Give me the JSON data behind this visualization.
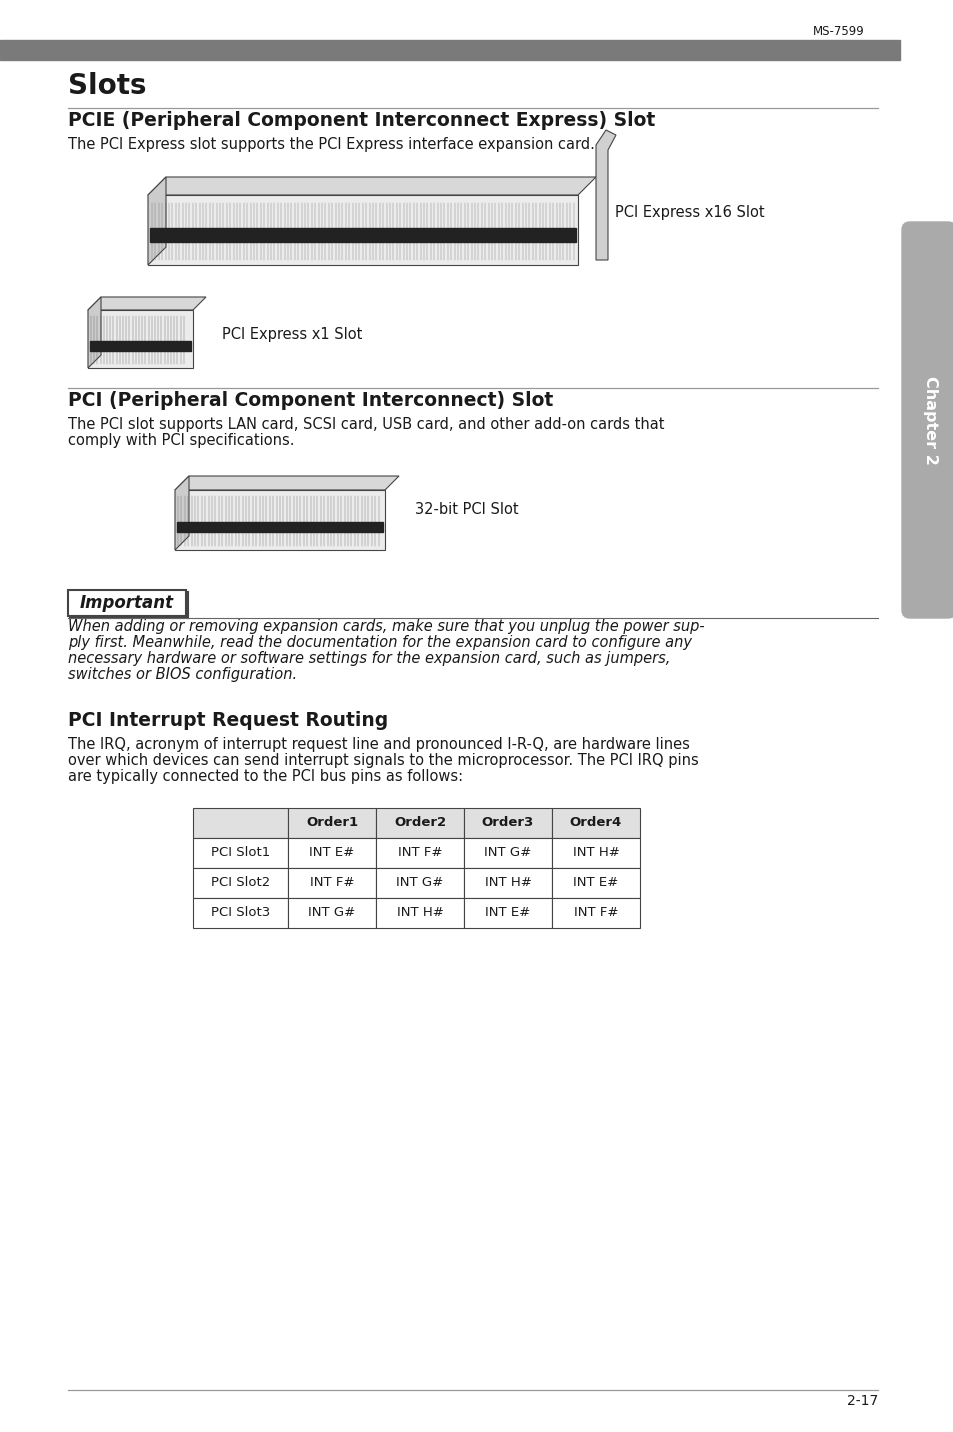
{
  "page_number": "2-17",
  "header_text": "MS-7599",
  "header_bar_color": "#7a7a7a",
  "bg_color": "#ffffff",
  "side_tab_color": "#aaaaaa",
  "side_tab_text": "Chapter 2",
  "section1_title": "Slots",
  "section2_title": "PCIE (Peripheral Component Interconnect Express) Slot",
  "section2_body": "The PCI Express slot supports the PCI Express interface expansion card.",
  "pcie_x16_label": "PCI Express x16 Slot",
  "pcie_x1_label": "PCI Express x1 Slot",
  "section3_title": "PCI (Peripheral Component Interconnect) Slot",
  "section3_body1": "The PCI slot supports LAN card, SCSI card, USB card, and other add-on cards that",
  "section3_body2": "comply with PCI specifications.",
  "pci_slot_label": "32-bit PCI Slot",
  "important_title": "Important",
  "important_body1": "When adding or removing expansion cards, make sure that you unplug the power sup-",
  "important_body2": "ply first. Meanwhile, read the documentation for the expansion card to configure any",
  "important_body3": "necessary hardware or software settings for the expansion card, such as jumpers,",
  "important_body4": "switches or BIOS configuration.",
  "section4_title": "PCI Interrupt Request Routing",
  "section4_body1": "The IRQ, acronym of interrupt request line and pronounced I-R-Q, are hardware lines",
  "section4_body2": "over which devices can send interrupt signals to the microprocessor. The PCI IRQ pins",
  "section4_body3": "are typically connected to the PCI bus pins as follows:",
  "table_headers": [
    "",
    "Order1",
    "Order2",
    "Order3",
    "Order4"
  ],
  "table_rows": [
    [
      "PCI Slot1",
      "INT E#",
      "INT F#",
      "INT G#",
      "INT H#"
    ],
    [
      "PCI Slot2",
      "INT F#",
      "INT G#",
      "INT H#",
      "INT E#"
    ],
    [
      "PCI Slot3",
      "INT G#",
      "INT H#",
      "INT E#",
      "INT F#"
    ]
  ],
  "table_header_bg": "#e0e0e0",
  "table_border_color": "#444444",
  "text_color": "#1a1a1a",
  "body_font_size": 10.5,
  "section_title_size": 13.5
}
